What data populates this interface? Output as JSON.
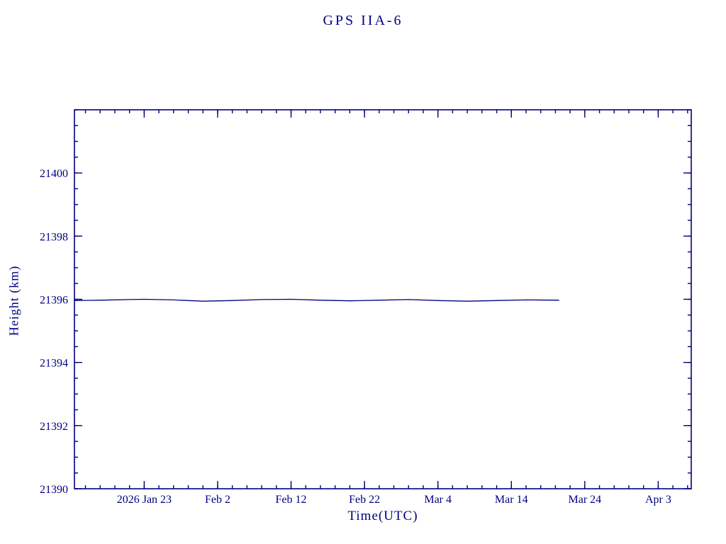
{
  "chart_data": {
    "type": "line",
    "title": "GPS IIA-6",
    "xlabel": "Time(UTC)",
    "ylabel": "Height (km)",
    "axis_color": "#000080",
    "line_color": "#000080",
    "background": "#ffffff",
    "grid": false,
    "legend": "none",
    "ylim": [
      21390,
      21402
    ],
    "y_ticks": [
      21390,
      21392,
      21394,
      21396,
      21398,
      21400
    ],
    "y_minor_step": 0.5,
    "xlim_days": [
      -9.5,
      74.5
    ],
    "x_minor_step_days": 2,
    "x_ticks": [
      {
        "label": "2026 Jan 23",
        "day": 0
      },
      {
        "label": "Feb  2",
        "day": 10
      },
      {
        "label": "Feb 12",
        "day": 20
      },
      {
        "label": "Feb 22",
        "day": 30
      },
      {
        "label": "Mar  4",
        "day": 40
      },
      {
        "label": "Mar 14",
        "day": 50
      },
      {
        "label": "Mar 24",
        "day": 60
      },
      {
        "label": "Apr  3",
        "day": 70
      }
    ],
    "series": [
      {
        "name": "height",
        "x_days": [
          -9.5,
          -6,
          -2,
          0,
          4,
          8,
          12,
          16,
          20,
          24,
          28,
          32,
          36,
          40,
          44,
          48,
          52,
          56.5
        ],
        "y": [
          21395.96,
          21395.97,
          21395.99,
          21396.0,
          21395.98,
          21395.94,
          21395.96,
          21395.99,
          21396.0,
          21395.97,
          21395.95,
          21395.97,
          21395.99,
          21395.96,
          21395.94,
          21395.96,
          21395.98,
          21395.97
        ]
      }
    ]
  }
}
